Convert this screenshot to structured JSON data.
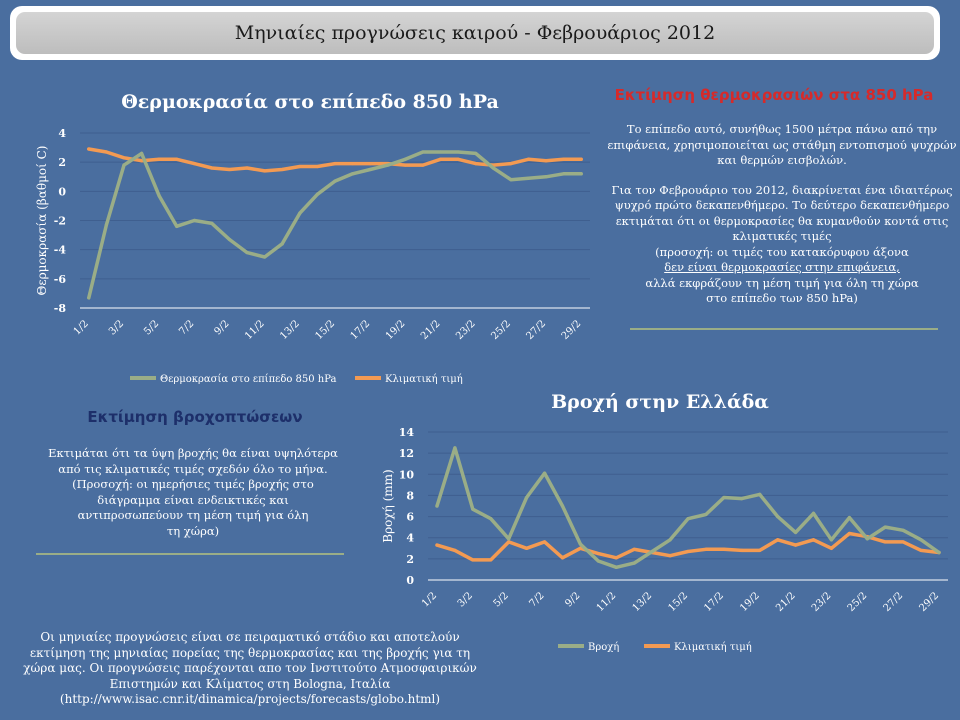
{
  "page_title": "Μηνιαίες προγνώσεις καιρού - Φεβρουάριος 2012",
  "temperature_panel": {
    "heading": "Εκτίμηση θερμοκρασιών στα 850 hPa",
    "p1": "Το επίπεδο αυτό, συνήθως 1500 μέτρα πάνω από την επιφάνεια, χρησιμοποιείται ως στάθμη εντοπισμού ψυχρών και θερμών εισβολών.",
    "p2a": "Για τον Φεβρουάριο του 2012, διακρίνεται ένα ιδιαιτέρως ψυχρό πρώτο δεκαπενθήμερο. Το δεύτερο δεκαπενθήμερο εκτιμάται ότι οι θερμοκρασίες θα κυμανθούν κοντά στις κλιματικές τιμές",
    "p2b": "(προσοχή: οι τιμές του κατακόρυφου άξονα",
    "p2c": "δεν είναι θερμοκρασίες στην επιφάνεια,",
    "p2d": "αλλά εκφράζουν τη μέση τιμή για όλη τη χώρα στο επίπεδο των 850 hPa)"
  },
  "rain_panel": {
    "heading": "Εκτίμηση βροχοπτώσεων",
    "p1": "Εκτιμάται ότι τα ύψη βροχής θα είναι υψηλότερα από τις κλιματικές τιμές σχεδόν όλο το μήνα.",
    "p2": "(Προσοχή: οι ημερήσιες τιμές βροχής στο διάγραμμα είναι ενδεικτικές και αντιπροσωπεύουν τη μέση τιμή για όλη τη χώρα)"
  },
  "footer_note": "Οι μηνιαίες προγνώσεις είναι σε πειραματικό στάδιο και αποτελούν εκτίμηση της μηνιαίας πορείας της θερμοκρασίας και της βροχής για τη χώρα μας. Οι προγνώσεις παρέχονται απο τον Ινστιτούτο Ατμοσφαιρικών Επιστημών και Κλίματος στη Bologna, Ιταλία",
  "footer_url": "(http://www.isac.cnr.it/dinamica/projects/forecasts/globo.html)",
  "colors": {
    "forecast_line": "#9aad87",
    "climate_line": "#f39a52",
    "background": "#4a6e9f"
  },
  "chart_data": [
    {
      "type": "line",
      "title": "Θερμοκρασία στο επίπεδο 850 hPa",
      "xlabel": "",
      "ylabel": "Θερμοκρασία (βαθμοί C)",
      "ylim": [
        -8,
        4
      ],
      "yticks": [
        4,
        2,
        0,
        -2,
        -4,
        -6,
        -8
      ],
      "x": [
        "1/2",
        "2/2",
        "3/2",
        "4/2",
        "5/2",
        "6/2",
        "7/2",
        "8/2",
        "9/2",
        "10/2",
        "11/2",
        "12/2",
        "13/2",
        "14/2",
        "15/2",
        "16/2",
        "17/2",
        "18/2",
        "19/2",
        "20/2",
        "21/2",
        "22/2",
        "23/2",
        "24/2",
        "25/2",
        "26/2",
        "27/2",
        "28/2",
        "29/2"
      ],
      "xtick_labels": [
        "1/2",
        "3/2",
        "5/2",
        "7/2",
        "9/2",
        "11/2",
        "13/2",
        "15/2",
        "17/2",
        "19/2",
        "21/2",
        "23/2",
        "25/2",
        "27/2",
        "29/2"
      ],
      "grid": true,
      "legend": "bottom",
      "series": [
        {
          "name": "Θερμοκρασία στο επίπεδο 850 hPa",
          "color": "#9aad87",
          "values": [
            -7.3,
            -2.3,
            1.8,
            2.6,
            -0.3,
            -2.4,
            -2.0,
            -2.2,
            -3.3,
            -4.2,
            -4.5,
            -3.6,
            -1.5,
            -0.2,
            0.7,
            1.2,
            1.5,
            1.8,
            2.2,
            2.7,
            2.7,
            2.7,
            2.6,
            1.6,
            0.8,
            0.9,
            1.0,
            1.2,
            1.2
          ]
        },
        {
          "name": "Κλιματική τιμή",
          "color": "#f39a52",
          "values": [
            2.9,
            2.7,
            2.3,
            2.1,
            2.2,
            2.2,
            1.9,
            1.6,
            1.5,
            1.6,
            1.4,
            1.5,
            1.7,
            1.7,
            1.9,
            1.9,
            1.9,
            1.9,
            1.8,
            1.8,
            2.2,
            2.2,
            1.9,
            1.8,
            1.9,
            2.2,
            2.1,
            2.2,
            2.2
          ]
        }
      ]
    },
    {
      "type": "line",
      "title": "Βροχή στην Ελλάδα",
      "xlabel": "",
      "ylabel": "Βροχή (mm)",
      "ylim": [
        0,
        14
      ],
      "yticks": [
        14,
        12,
        10,
        8,
        6,
        4,
        2,
        0
      ],
      "x": [
        "1/2",
        "2/2",
        "3/2",
        "4/2",
        "5/2",
        "6/2",
        "7/2",
        "8/2",
        "9/2",
        "10/2",
        "11/2",
        "12/2",
        "13/2",
        "14/2",
        "15/2",
        "16/2",
        "17/2",
        "18/2",
        "19/2",
        "20/2",
        "21/2",
        "22/2",
        "23/2",
        "24/2",
        "25/2",
        "26/2",
        "27/2",
        "28/2",
        "29/2"
      ],
      "xtick_labels": [
        "1/2",
        "3/2",
        "5/2",
        "7/2",
        "9/2",
        "11/2",
        "13/2",
        "15/2",
        "17/2",
        "19/2",
        "21/2",
        "23/2",
        "25/2",
        "27/2",
        "29/2"
      ],
      "grid": true,
      "legend": "bottom",
      "series": [
        {
          "name": "Βροχή",
          "color": "#9aad87",
          "values": [
            7.0,
            12.5,
            6.7,
            5.8,
            3.9,
            7.8,
            10.1,
            7.0,
            3.4,
            1.8,
            1.2,
            1.6,
            2.7,
            3.8,
            5.8,
            6.2,
            7.8,
            7.7,
            8.1,
            6.0,
            4.5,
            6.3,
            3.8,
            5.9,
            3.9,
            5.0,
            4.7,
            3.8,
            2.6
          ]
        },
        {
          "name": "Κλιματική τιμή",
          "color": "#f39a52",
          "values": [
            3.3,
            2.8,
            1.9,
            1.9,
            3.6,
            3.0,
            3.6,
            2.1,
            3.0,
            2.5,
            2.1,
            2.9,
            2.6,
            2.3,
            2.7,
            2.9,
            2.9,
            2.8,
            2.8,
            3.8,
            3.3,
            3.8,
            3.0,
            4.4,
            4.1,
            3.6,
            3.6,
            2.8,
            2.6
          ]
        }
      ]
    }
  ]
}
